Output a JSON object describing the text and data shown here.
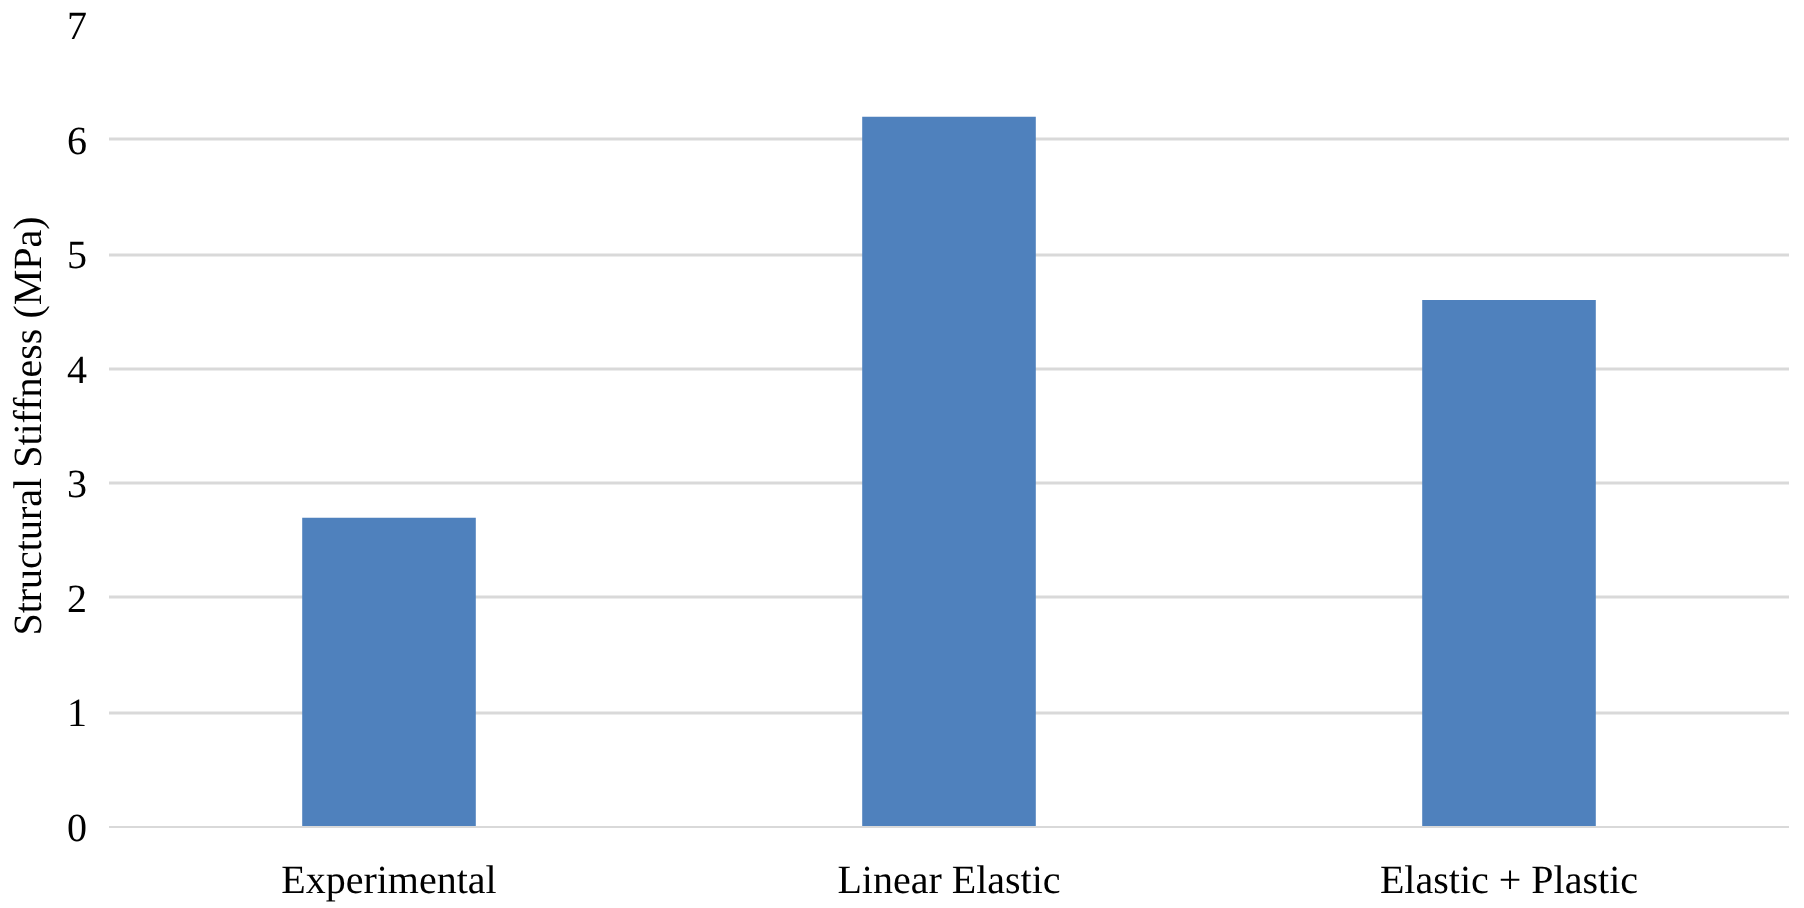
{
  "chart_data": {
    "type": "bar",
    "ylabel": "Structural Stiffness (MPa)",
    "categories": [
      "Experimental",
      "Linear Elastic",
      "Elastic + Plastic"
    ],
    "values": [
      2.7,
      6.2,
      4.6
    ],
    "color": "#4f81bd",
    "ylim": [
      0,
      7
    ],
    "yticks": [
      0,
      1,
      2,
      3,
      4,
      5,
      6,
      7
    ],
    "grid": "y"
  }
}
